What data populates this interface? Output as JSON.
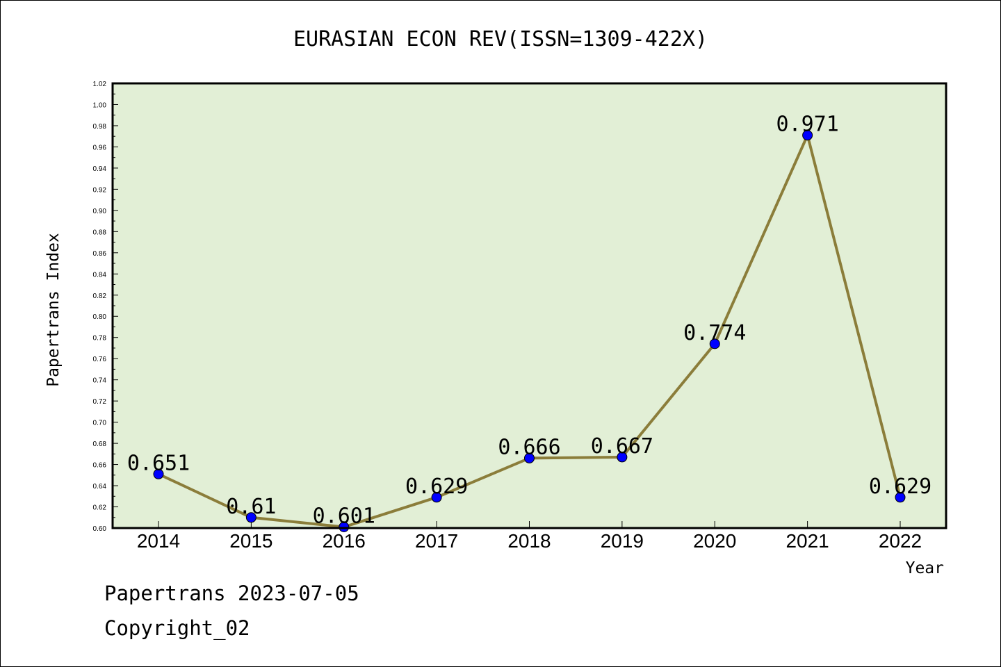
{
  "chart_data": {
    "type": "line",
    "title": "EURASIAN ECON REV(ISSN=1309-422X)",
    "xlabel": "Year",
    "ylabel": "Papertrans Index",
    "categories": [
      "2014",
      "2015",
      "2016",
      "2017",
      "2018",
      "2019",
      "2020",
      "2021",
      "2022"
    ],
    "series": [
      {
        "values": [
          0.651,
          0.61,
          0.601,
          0.629,
          0.666,
          0.667,
          0.774,
          0.971,
          0.629
        ],
        "labels": [
          "0.651",
          "0.61",
          "0.601",
          "0.629",
          "0.666",
          "0.667",
          "0.774",
          "0.971",
          "0.629"
        ]
      }
    ],
    "ylim": [
      0.6,
      1.02
    ],
    "yticks": [
      "0.60",
      "0.62",
      "0.64",
      "0.66",
      "0.68",
      "0.70",
      "0.72",
      "0.74",
      "0.76",
      "0.78",
      "0.80",
      "0.82",
      "0.84",
      "0.86",
      "0.88",
      "0.90",
      "0.92",
      "0.94",
      "0.96",
      "0.98",
      "1.00",
      "1.02"
    ],
    "grid": false,
    "colors": {
      "plot_background": "#e2efd6",
      "line": "#8b7d3a",
      "marker": "#0000ff"
    }
  },
  "footer": {
    "line1": "Papertrans 2023-07-05",
    "line2": "Copyright_02"
  }
}
